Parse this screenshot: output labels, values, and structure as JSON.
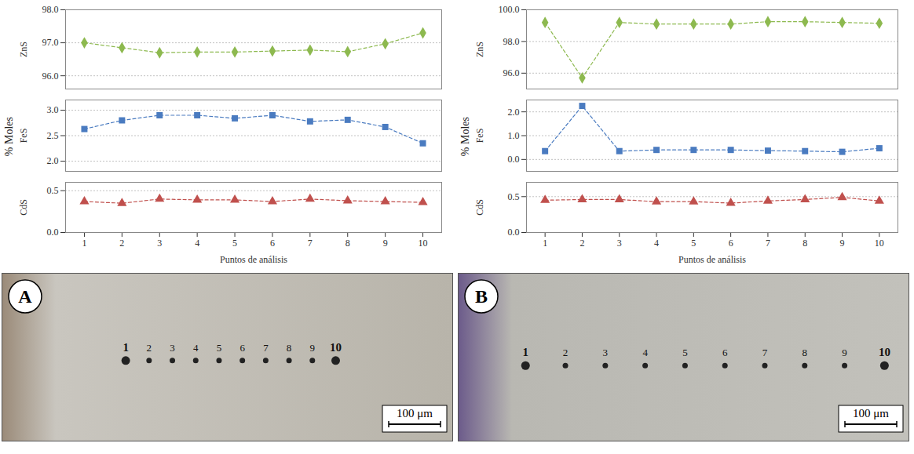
{
  "chart_data": [
    {
      "type": "line",
      "xlabel": "Puntos de análisis",
      "ylabel": "% Moles",
      "x": [
        1,
        2,
        3,
        4,
        5,
        6,
        7,
        8,
        9,
        10
      ],
      "xlim": [
        0.5,
        10.5
      ],
      "xticks": [
        1,
        2,
        3,
        4,
        5,
        6,
        7,
        8,
        9,
        10
      ],
      "grid": true,
      "series": [
        {
          "name": "ZnS",
          "color": "#8db94f",
          "marker": "diamond",
          "line_style": "dashed",
          "values": [
            97.0,
            96.85,
            96.7,
            96.72,
            96.72,
            96.75,
            96.78,
            96.73,
            96.97,
            97.3
          ],
          "ylim": [
            95.6,
            98.0
          ],
          "yticks": [
            {
              "value": 96,
              "label": "96.0"
            },
            {
              "value": 97,
              "label": "97.0"
            },
            {
              "value": 98,
              "label": "98.0"
            }
          ]
        },
        {
          "name": "FeS",
          "color": "#4a7bc0",
          "marker": "square",
          "line_style": "dashed",
          "values": [
            2.63,
            2.8,
            2.9,
            2.9,
            2.84,
            2.9,
            2.78,
            2.81,
            2.67,
            2.35
          ],
          "ylim": [
            1.8,
            3.2
          ],
          "yticks": [
            {
              "value": 2,
              "label": "2.0"
            },
            2.5,
            {
              "value": 3,
              "label": "3.0"
            }
          ]
        },
        {
          "name": "CdS",
          "color": "#c0504d",
          "marker": "triangle",
          "line_style": "dashed",
          "values": [
            0.37,
            0.35,
            0.4,
            0.39,
            0.39,
            0.37,
            0.4,
            0.38,
            0.37,
            0.36
          ],
          "ylim": [
            0,
            0.6
          ],
          "yticks": [
            {
              "value": 0,
              "label": "0.0"
            },
            0.5
          ]
        }
      ]
    },
    {
      "type": "line",
      "xlabel": "Puntos de análisis",
      "ylabel": "% Moles",
      "x": [
        1,
        2,
        3,
        4,
        5,
        6,
        7,
        8,
        9,
        10
      ],
      "xlim": [
        0.5,
        10.5
      ],
      "xticks": [
        1,
        2,
        3,
        4,
        5,
        6,
        7,
        8,
        9,
        10
      ],
      "grid": true,
      "series": [
        {
          "name": "ZnS",
          "color": "#8db94f",
          "marker": "diamond",
          "line_style": "dashed",
          "values": [
            99.2,
            95.7,
            99.2,
            99.1,
            99.1,
            99.1,
            99.25,
            99.25,
            99.2,
            99.15
          ],
          "ylim": [
            95,
            100
          ],
          "yticks": [
            {
              "value": 96,
              "label": "96.0"
            },
            {
              "value": 98,
              "label": "98.0"
            },
            {
              "value": 100,
              "label": "100.0"
            }
          ]
        },
        {
          "name": "FeS",
          "color": "#4a7bc0",
          "marker": "square",
          "line_style": "dashed",
          "values": [
            0.35,
            2.25,
            0.35,
            0.4,
            0.4,
            0.4,
            0.37,
            0.35,
            0.32,
            0.47
          ],
          "ylim": [
            -0.5,
            2.5
          ],
          "yticks": [
            {
              "value": 0,
              "label": "0.0"
            },
            {
              "value": 1,
              "label": "1.0"
            },
            {
              "value": 2,
              "label": "2.0"
            }
          ]
        },
        {
          "name": "CdS",
          "color": "#c0504d",
          "marker": "triangle",
          "line_style": "dashed",
          "values": [
            0.45,
            0.46,
            0.46,
            0.43,
            0.43,
            0.41,
            0.44,
            0.46,
            0.49,
            0.44
          ],
          "ylim": [
            0,
            0.7
          ],
          "yticks": [
            {
              "value": 0,
              "label": "0.0"
            },
            0.5
          ]
        }
      ]
    }
  ],
  "micrographs": [
    {
      "label": "A",
      "points": [
        1,
        2,
        3,
        4,
        5,
        6,
        7,
        8,
        9,
        10
      ],
      "scale_bar": "100 μm"
    },
    {
      "label": "B",
      "points": [
        1,
        2,
        3,
        4,
        5,
        6,
        7,
        8,
        9,
        10
      ],
      "scale_bar": "100 μm"
    }
  ]
}
